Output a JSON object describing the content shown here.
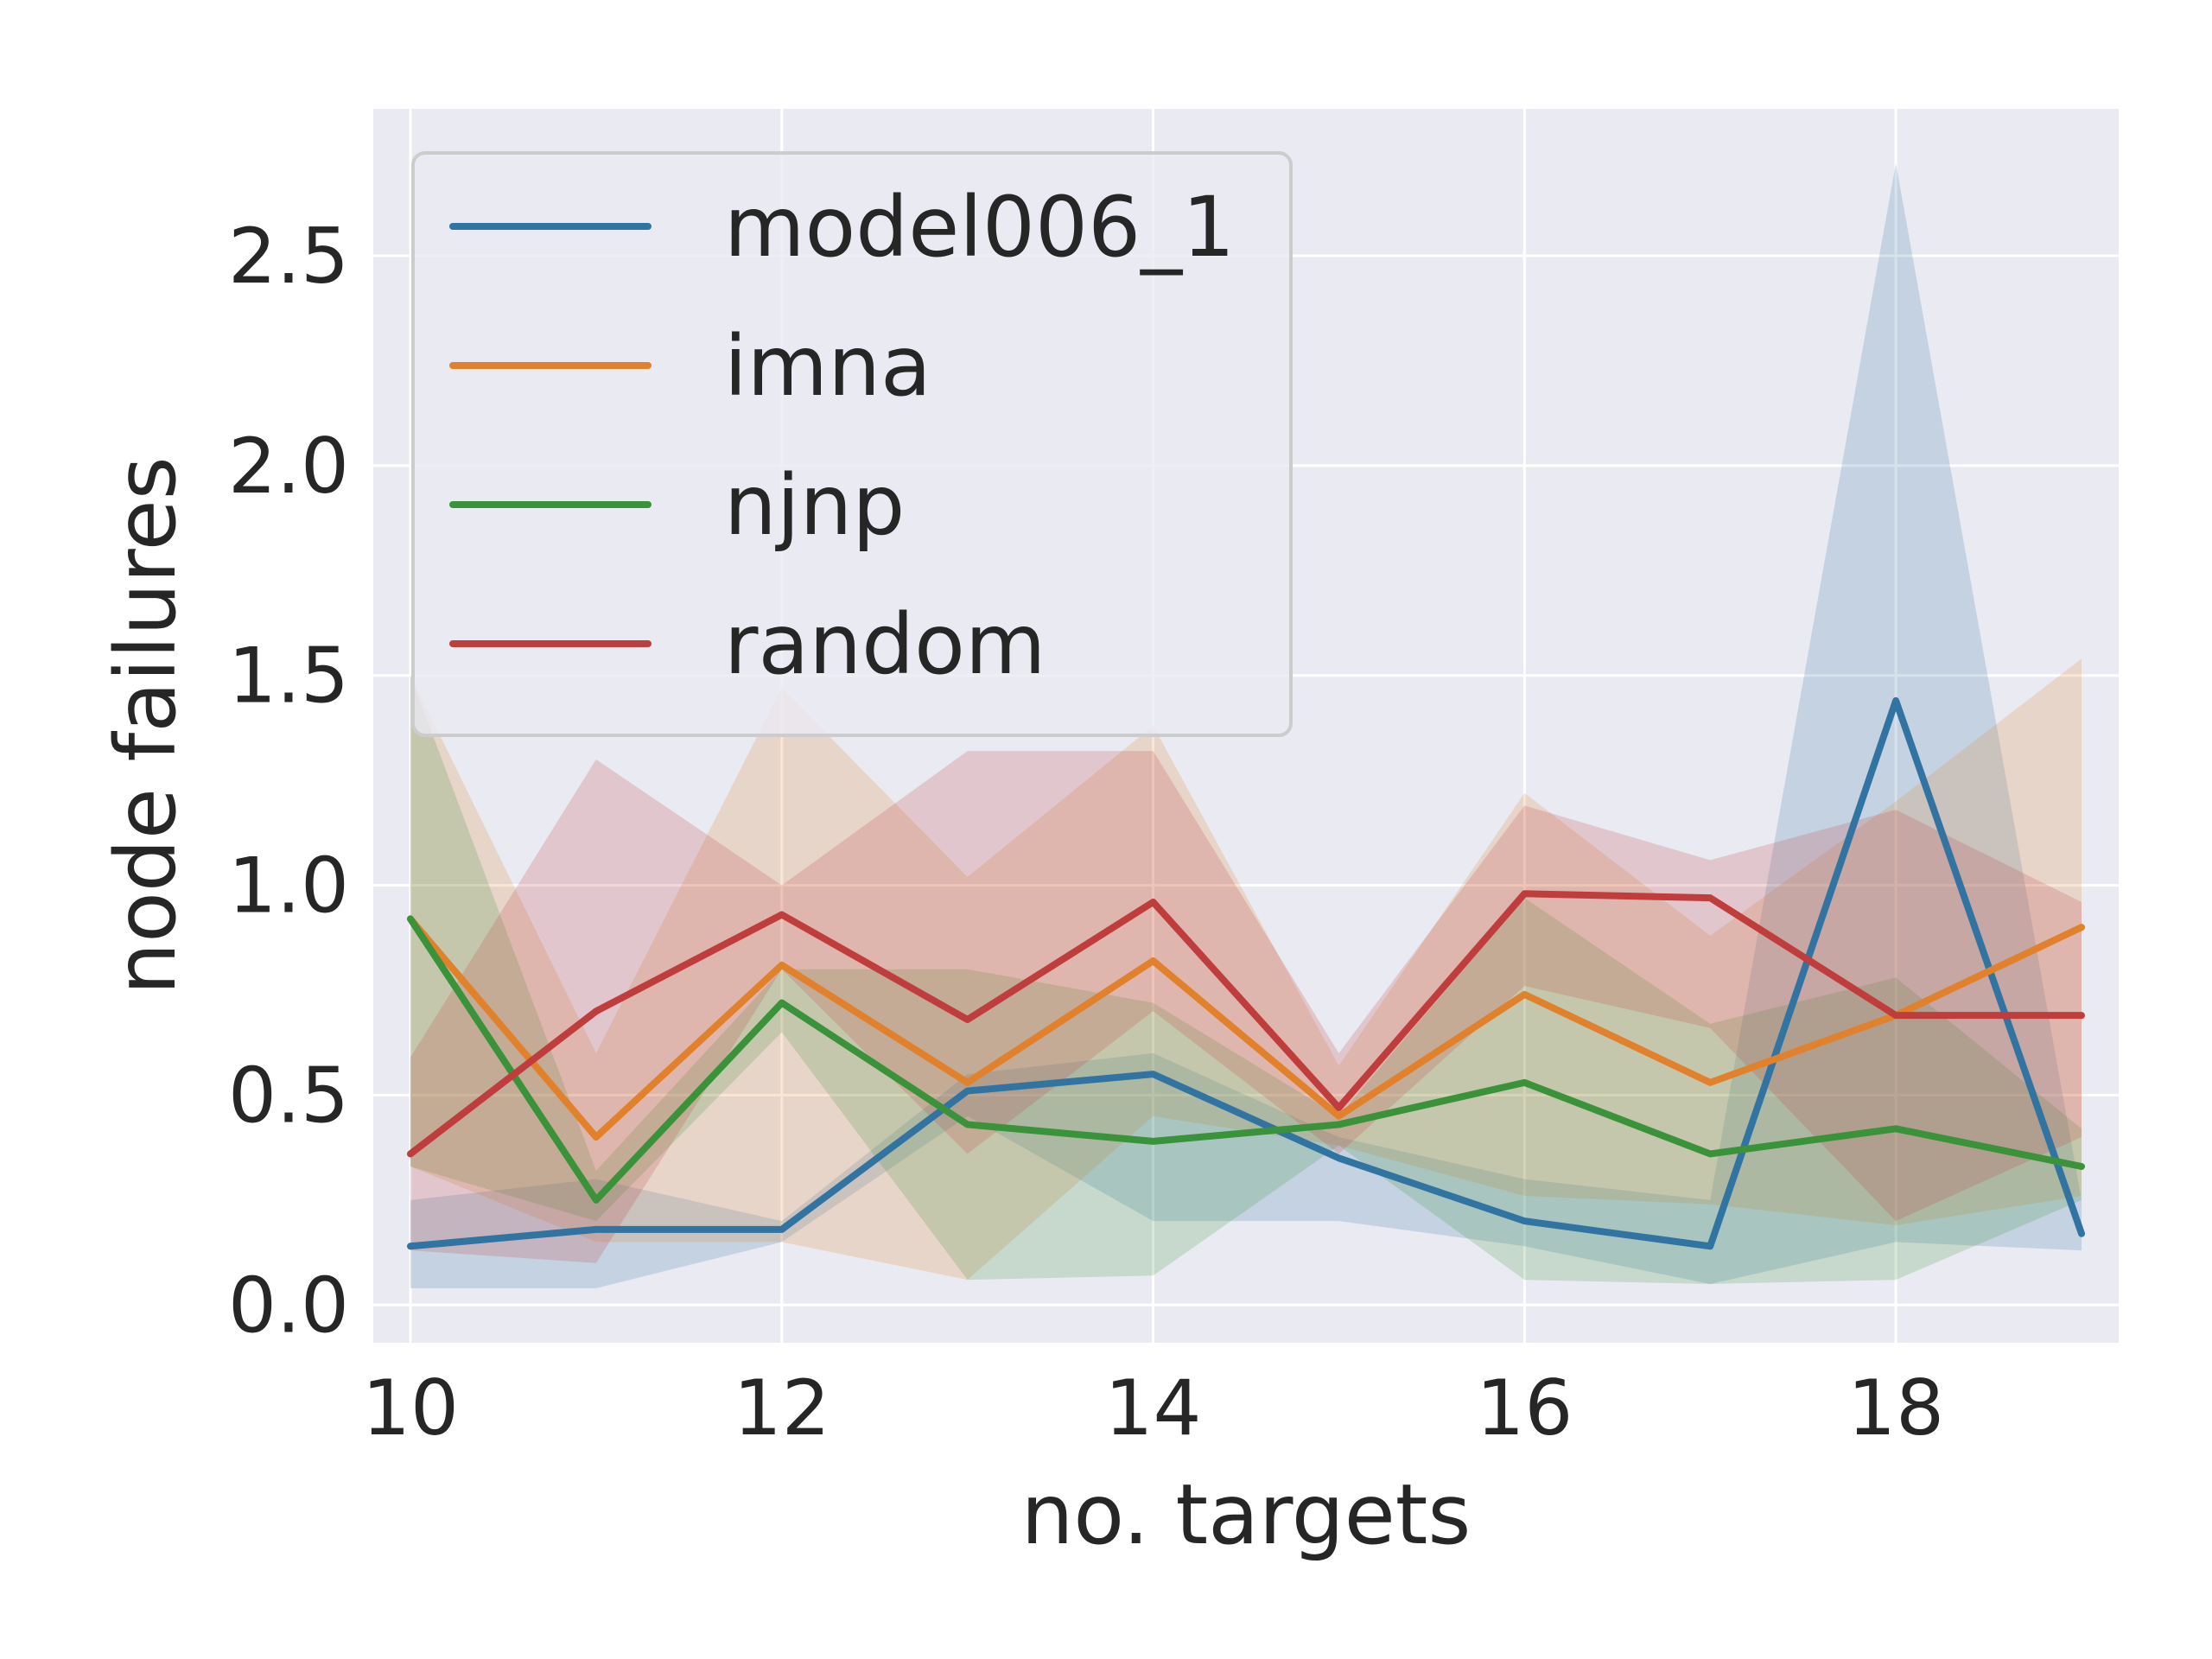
{
  "chart_data": {
    "type": "line",
    "xlabel": "no. targets",
    "ylabel": "node failures",
    "xlim": [
      9.8,
      19.2
    ],
    "ylim": [
      -0.09,
      2.85
    ],
    "xticks": [
      10,
      12,
      14,
      16,
      18
    ],
    "xtick_labels": [
      "10",
      "12",
      "14",
      "16",
      "18"
    ],
    "yticks": [
      0.0,
      0.5,
      1.0,
      1.5,
      2.0,
      2.5
    ],
    "ytick_labels": [
      "0.0",
      "0.5",
      "1.0",
      "1.5",
      "2.0",
      "2.5"
    ],
    "grid": true,
    "legend_position": "top-left",
    "x": [
      10,
      11,
      12,
      13,
      14,
      15,
      16,
      17,
      18,
      19
    ],
    "series": [
      {
        "name": "model006_1",
        "color": "#3274a1",
        "values": [
          0.14,
          0.18,
          0.18,
          0.51,
          0.55,
          0.35,
          0.2,
          0.14,
          1.44,
          0.17
        ],
        "lower": [
          0.04,
          0.04,
          0.15,
          0.45,
          0.2,
          0.2,
          0.14,
          0.05,
          0.15,
          0.13
        ],
        "upper": [
          0.25,
          0.3,
          0.2,
          0.55,
          0.6,
          0.4,
          0.3,
          0.25,
          2.72,
          0.25
        ]
      },
      {
        "name": "imna",
        "color": "#e1812c",
        "values": [
          0.92,
          0.4,
          0.81,
          0.53,
          0.82,
          0.45,
          0.74,
          0.53,
          0.69,
          0.9
        ],
        "lower": [
          0.33,
          0.15,
          0.15,
          0.06,
          0.45,
          0.38,
          0.26,
          0.24,
          0.19,
          0.26
        ],
        "upper": [
          1.5,
          0.6,
          1.47,
          1.02,
          1.38,
          0.57,
          1.22,
          0.88,
          1.2,
          1.54
        ]
      },
      {
        "name": "njnp",
        "color": "#3a923a",
        "values": [
          0.92,
          0.25,
          0.72,
          0.43,
          0.39,
          0.43,
          0.53,
          0.36,
          0.42,
          0.33
        ],
        "lower": [
          0.33,
          0.2,
          0.65,
          0.06,
          0.07,
          0.38,
          0.06,
          0.05,
          0.06,
          0.25
        ],
        "upper": [
          1.5,
          0.32,
          0.8,
          0.8,
          0.72,
          0.45,
          0.97,
          0.67,
          0.78,
          0.42
        ]
      },
      {
        "name": "random",
        "color": "#c03d3e",
        "values": [
          0.36,
          0.7,
          0.93,
          0.68,
          0.96,
          0.47,
          0.98,
          0.97,
          0.69,
          0.69
        ],
        "lower": [
          0.13,
          0.1,
          0.8,
          0.36,
          0.7,
          0.36,
          0.76,
          0.66,
          0.2,
          0.4
        ],
        "upper": [
          0.59,
          1.3,
          1.0,
          1.32,
          1.32,
          0.6,
          1.19,
          1.06,
          1.18,
          0.96
        ]
      }
    ]
  }
}
